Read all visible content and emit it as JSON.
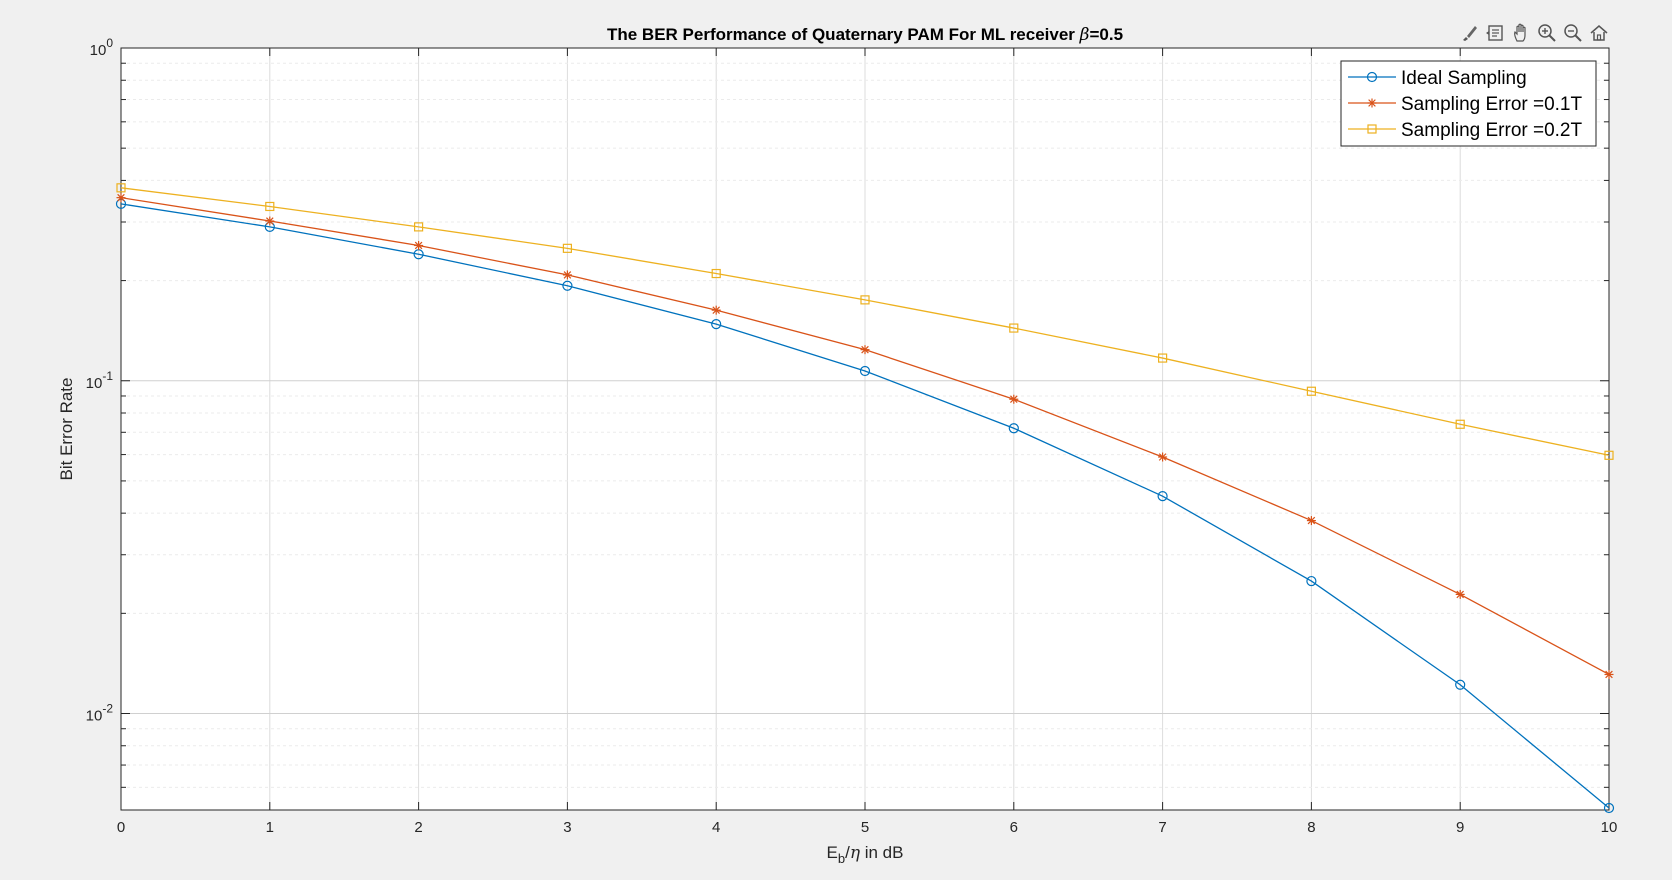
{
  "toolbar": {
    "icons": [
      "brush-icon",
      "data-tips-icon",
      "pan-icon",
      "zoom-in-icon",
      "zoom-out-icon",
      "home-icon"
    ]
  },
  "chart_data": {
    "type": "line",
    "title_main": "The BER Performance of Quaternary PAM For ML receiver ",
    "title_symbol": "β",
    "title_tail": "=0.5",
    "xlabel_base": "E",
    "xlabel_sub": "b",
    "xlabel_slash": "/",
    "xlabel_eta": "η",
    "xlabel_tail": " in dB",
    "ylabel": "Bit Error Rate",
    "x": [
      0,
      1,
      2,
      3,
      4,
      5,
      6,
      7,
      8,
      9,
      10
    ],
    "xlim": [
      0,
      10
    ],
    "ylim_log10": [
      -2.29,
      0
    ],
    "y_scale": "log",
    "grid": true,
    "minor_grid": true,
    "legend_position": "top-right",
    "x_ticks": [
      "0",
      "1",
      "2",
      "3",
      "4",
      "5",
      "6",
      "7",
      "8",
      "9",
      "10"
    ],
    "y_ticks": [
      {
        "value": 1,
        "base": "10",
        "exp": "0"
      },
      {
        "value": 0.1,
        "base": "10",
        "exp": "-1"
      },
      {
        "value": 0.01,
        "base": "10",
        "exp": "-2"
      }
    ],
    "series": [
      {
        "name": "Ideal Sampling",
        "color": "#0072BD",
        "marker": "circle",
        "values": [
          0.34,
          0.29,
          0.24,
          0.193,
          0.148,
          0.107,
          0.072,
          0.045,
          0.025,
          0.0122,
          0.0052
        ]
      },
      {
        "name": "Sampling Error =0.1T",
        "color": "#D95319",
        "marker": "asterisk",
        "values": [
          0.355,
          0.302,
          0.255,
          0.208,
          0.163,
          0.124,
          0.088,
          0.059,
          0.038,
          0.0228,
          0.0131
        ]
      },
      {
        "name": "Sampling Error =0.2T",
        "color": "#EDB120",
        "marker": "square",
        "values": [
          0.38,
          0.334,
          0.29,
          0.25,
          0.21,
          0.175,
          0.144,
          0.117,
          0.093,
          0.074,
          0.0597
        ]
      }
    ]
  }
}
